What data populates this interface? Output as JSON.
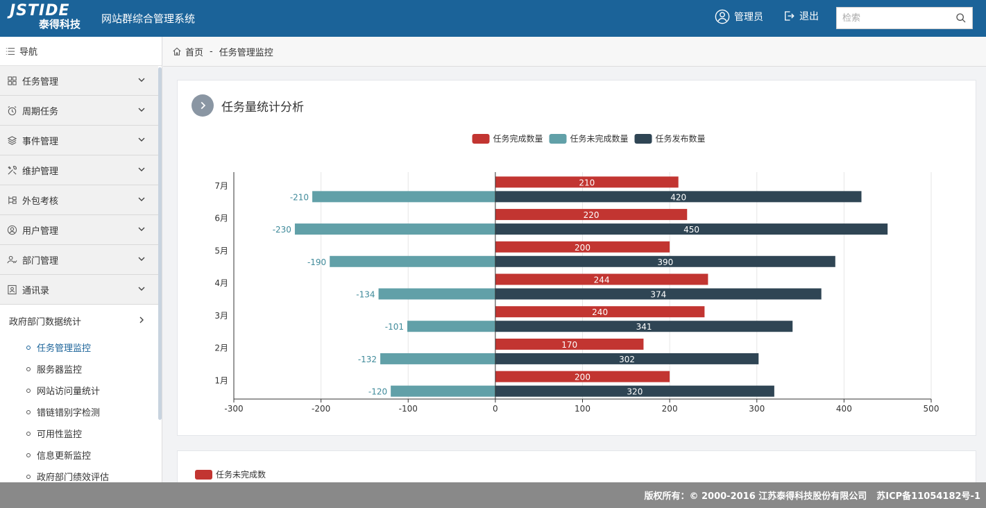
{
  "header": {
    "logo_top": "JSTIDE",
    "logo_bottom": "泰得科技",
    "system_title": "网站群综合管理系统",
    "admin_label": "管理员",
    "logout_label": "退出",
    "search_placeholder": "检索",
    "colors": {
      "bar": "#1b6399"
    }
  },
  "sidebar": {
    "nav_label": "导航",
    "items": [
      {
        "label": "任务管理",
        "icon": "grid-icon"
      },
      {
        "label": "周期任务",
        "icon": "alarm-clock-icon"
      },
      {
        "label": "事件管理",
        "icon": "layers-icon"
      },
      {
        "label": "维护管理",
        "icon": "tools-icon"
      },
      {
        "label": "外包考核",
        "icon": "flow-icon"
      },
      {
        "label": "用户管理",
        "icon": "user-icon"
      },
      {
        "label": "部门管理",
        "icon": "users-icon"
      },
      {
        "label": "通讯录",
        "icon": "contact-book-icon"
      }
    ],
    "expanded_label": "政府部门数据统计",
    "sub_items": [
      {
        "label": "任务管理监控",
        "active": true
      },
      {
        "label": "服务器监控",
        "active": false
      },
      {
        "label": "网站访问量统计",
        "active": false
      },
      {
        "label": "错链错别字检测",
        "active": false
      },
      {
        "label": "可用性监控",
        "active": false
      },
      {
        "label": "信息更新监控",
        "active": false
      },
      {
        "label": "政府部门绩效评估",
        "active": false
      }
    ]
  },
  "breadcrumb": {
    "home": "首页",
    "separator": "-",
    "current": "任务管理监控"
  },
  "panel1": {
    "title": "任务量统计分析"
  },
  "panel2": {
    "legend": "任务未完成数"
  },
  "footer": {
    "copyright": "版权所有：© 2000-2016 江苏泰得科技股份有限公司",
    "icp": "苏ICP备11054182号-1"
  },
  "chart_data": {
    "type": "bar",
    "orientation": "horizontal",
    "categories": [
      "1月",
      "2月",
      "3月",
      "4月",
      "5月",
      "6月",
      "7月"
    ],
    "series": [
      {
        "name": "任务完成数量",
        "color": "#c23531",
        "values": [
          200,
          170,
          240,
          244,
          200,
          220,
          210
        ]
      },
      {
        "name": "任务未完成数量",
        "color": "#61a0a8",
        "values": [
          -120,
          -132,
          -101,
          -134,
          -190,
          -230,
          -210
        ]
      },
      {
        "name": "任务发布数量",
        "color": "#2f4554",
        "values": [
          320,
          302,
          341,
          374,
          390,
          450,
          420
        ]
      }
    ],
    "xlim": [
      -300,
      500
    ],
    "xticks": [
      -300,
      -200,
      -100,
      0,
      100,
      200,
      300,
      400,
      500
    ],
    "grid": true,
    "legend_position": "top-center"
  }
}
